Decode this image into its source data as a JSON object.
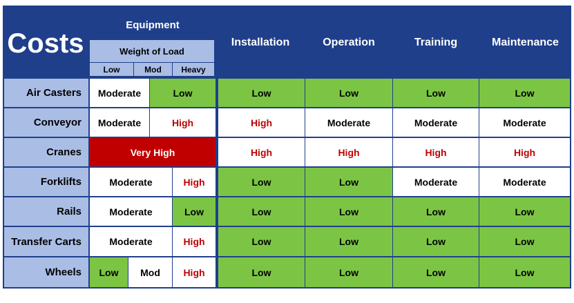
{
  "header": {
    "title": "Costs",
    "equipment": "Equipment",
    "weight_of_load": "Weight of Load",
    "sub": [
      "Low",
      "Mod",
      "Heavy"
    ],
    "columns": [
      "Installation",
      "Operation",
      "Training",
      "Maintenance"
    ]
  },
  "rows": [
    {
      "label": "Air Casters",
      "equip": [
        "Moderate",
        "Low"
      ],
      "vals": [
        "Low",
        "Low",
        "Low",
        "Low"
      ]
    },
    {
      "label": "Conveyor",
      "equip": [
        "Moderate",
        "High"
      ],
      "vals": [
        "High",
        "Moderate",
        "Moderate",
        "Moderate"
      ]
    },
    {
      "label": "Cranes",
      "equip": [
        "Very High"
      ],
      "vals": [
        "High",
        "High",
        "High",
        "High"
      ]
    },
    {
      "label": "Forklifts",
      "equip": [
        "Moderate",
        "High"
      ],
      "vals": [
        "Low",
        "Low",
        "Moderate",
        "Moderate"
      ]
    },
    {
      "label": "Rails",
      "equip": [
        "Moderate",
        "Low"
      ],
      "vals": [
        "Low",
        "Low",
        "Low",
        "Low"
      ]
    },
    {
      "label": "Transfer Carts",
      "equip": [
        "Moderate",
        "High"
      ],
      "vals": [
        "Low",
        "Low",
        "Low",
        "Low"
      ]
    },
    {
      "label": "Wheels",
      "equip": [
        "Low",
        "Mod",
        "High"
      ],
      "vals": [
        "Low",
        "Low",
        "Low",
        "Low"
      ]
    }
  ],
  "colors": {
    "navy": "#1f3f8b",
    "light_blue": "#a9bde5",
    "green": "#7cc544",
    "red": "#c00000"
  }
}
